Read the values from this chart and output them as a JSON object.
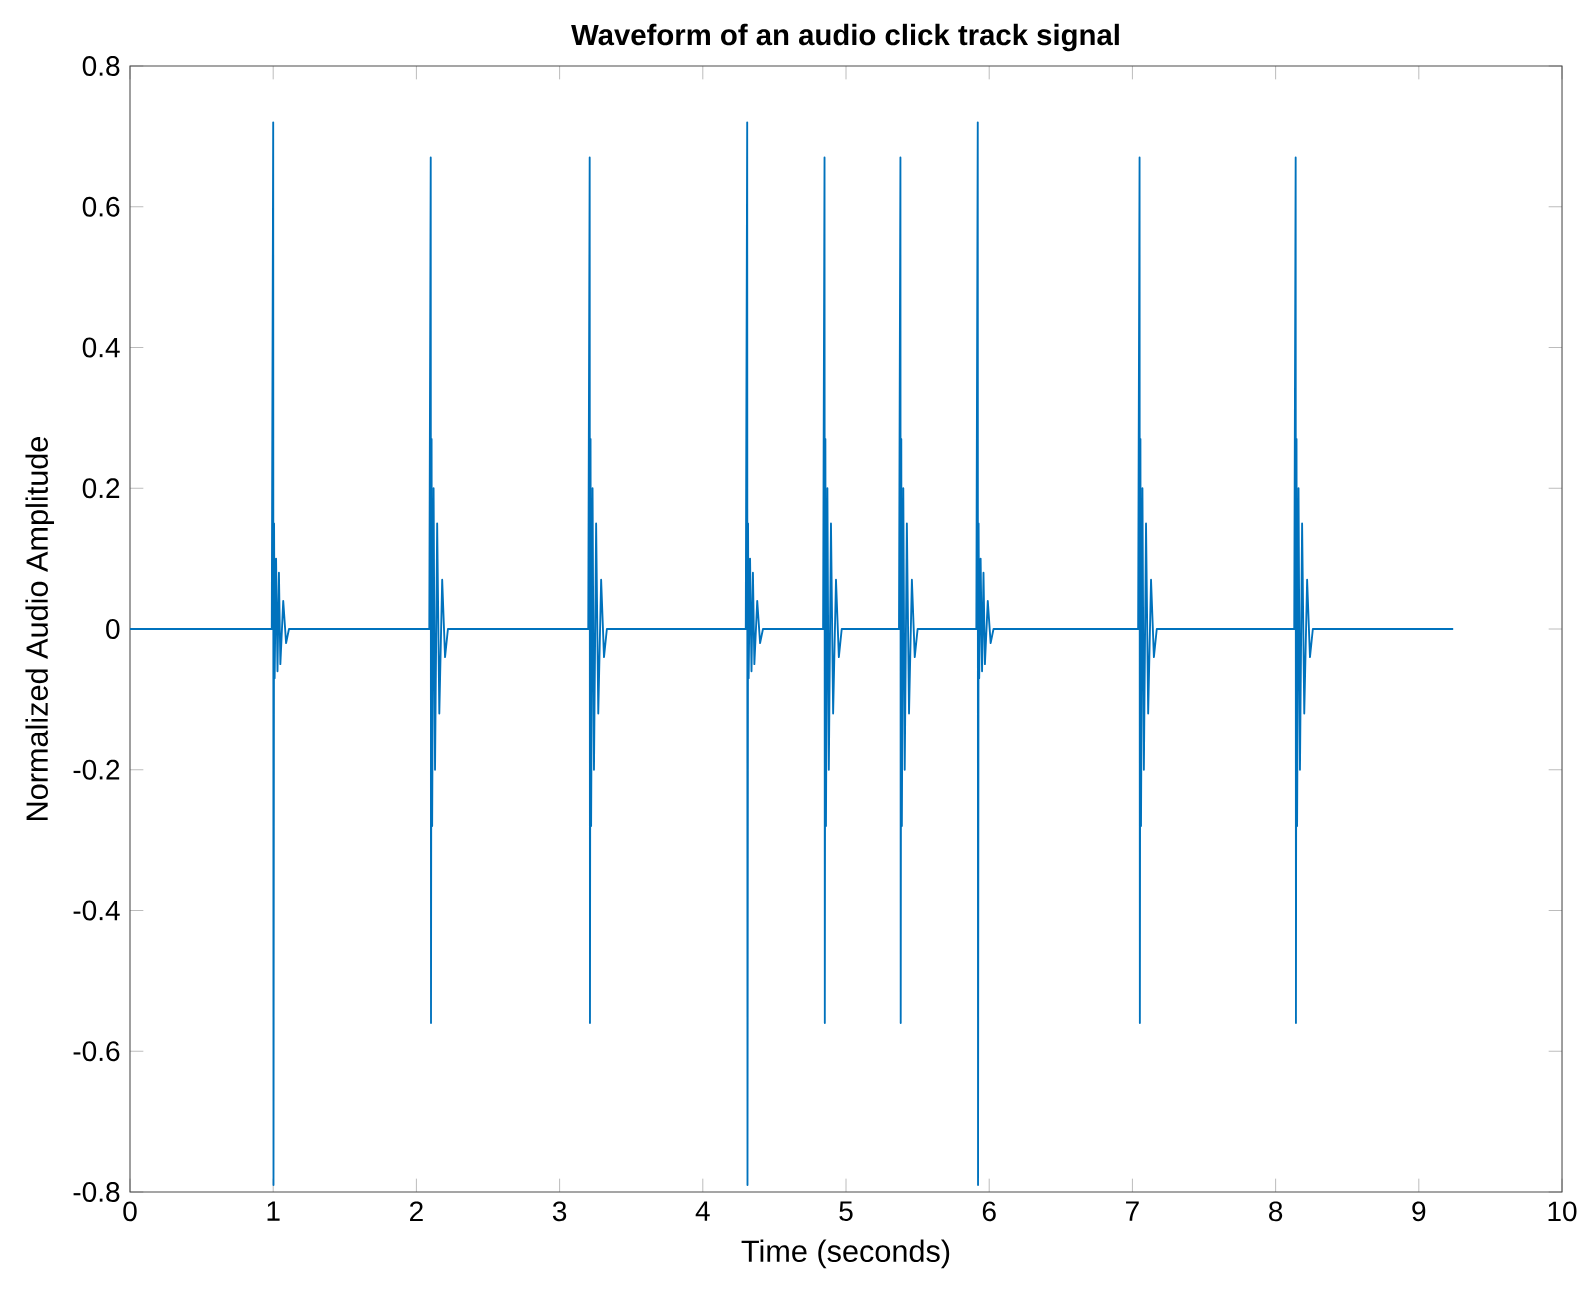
{
  "chart_data": {
    "type": "line",
    "title": "Waveform of an audio click track signal",
    "xlabel": "Time (seconds)",
    "ylabel": "Normalized Audio Amplitude",
    "xlim": [
      0,
      10
    ],
    "ylim": [
      -0.8,
      0.8
    ],
    "xticks": [
      0,
      1,
      2,
      3,
      4,
      5,
      6,
      7,
      8,
      9,
      10
    ],
    "yticks": [
      -0.8,
      -0.6,
      -0.4,
      -0.2,
      0,
      0.2,
      0.4,
      0.6,
      0.8
    ],
    "grid": false,
    "marker": "none",
    "line_style": "solid",
    "series": [
      {
        "color": "#0072bd",
        "x": [
          0,
          0.99,
          1.0,
          1.002,
          1.006,
          1.01,
          1.02,
          1.03,
          1.04,
          1.05,
          1.07,
          1.09,
          1.11,
          2.09,
          2.1,
          2.102,
          2.106,
          2.11,
          2.12,
          2.13,
          2.145,
          2.16,
          2.18,
          2.2,
          2.22,
          3.2,
          3.21,
          3.212,
          3.216,
          3.22,
          3.23,
          3.24,
          3.255,
          3.27,
          3.29,
          3.31,
          3.33,
          4.3,
          4.31,
          4.312,
          4.316,
          4.32,
          4.33,
          4.34,
          4.35,
          4.36,
          4.38,
          4.4,
          4.42,
          4.84,
          4.85,
          4.852,
          4.856,
          4.86,
          4.87,
          4.88,
          4.895,
          4.91,
          4.93,
          4.95,
          4.97,
          5.37,
          5.38,
          5.382,
          5.386,
          5.39,
          5.4,
          5.41,
          5.425,
          5.44,
          5.46,
          5.48,
          5.5,
          5.91,
          5.92,
          5.922,
          5.926,
          5.93,
          5.94,
          5.95,
          5.96,
          5.97,
          5.99,
          6.01,
          6.03,
          7.04,
          7.05,
          7.052,
          7.056,
          7.06,
          7.07,
          7.08,
          7.095,
          7.11,
          7.13,
          7.15,
          7.17,
          8.13,
          8.14,
          8.142,
          8.146,
          8.15,
          8.16,
          8.17,
          8.185,
          8.2,
          8.22,
          8.24,
          8.26,
          9.24
        ],
        "values": [
          0,
          0,
          0.72,
          -0.79,
          0.15,
          -0.07,
          0.1,
          -0.06,
          0.08,
          -0.05,
          0.04,
          -0.02,
          0,
          0,
          0.67,
          -0.56,
          0.27,
          -0.28,
          0.2,
          -0.2,
          0.15,
          -0.12,
          0.07,
          -0.04,
          0,
          0,
          0.67,
          -0.56,
          0.27,
          -0.28,
          0.2,
          -0.2,
          0.15,
          -0.12,
          0.07,
          -0.04,
          0,
          0,
          0.72,
          -0.79,
          0.15,
          -0.07,
          0.1,
          -0.06,
          0.08,
          -0.05,
          0.04,
          -0.02,
          0,
          0,
          0.67,
          -0.56,
          0.27,
          -0.28,
          0.2,
          -0.2,
          0.15,
          -0.12,
          0.07,
          -0.04,
          0,
          0,
          0.67,
          -0.56,
          0.27,
          -0.28,
          0.2,
          -0.2,
          0.15,
          -0.12,
          0.07,
          -0.04,
          0,
          0,
          0.72,
          -0.79,
          0.15,
          -0.07,
          0.1,
          -0.06,
          0.08,
          -0.05,
          0.04,
          -0.02,
          0,
          0,
          0.67,
          -0.56,
          0.27,
          -0.28,
          0.2,
          -0.2,
          0.15,
          -0.12,
          0.07,
          -0.04,
          0,
          0,
          0.67,
          -0.56,
          0.27,
          -0.28,
          0.2,
          -0.2,
          0.15,
          -0.12,
          0.07,
          -0.04,
          0,
          0
        ]
      }
    ]
  }
}
